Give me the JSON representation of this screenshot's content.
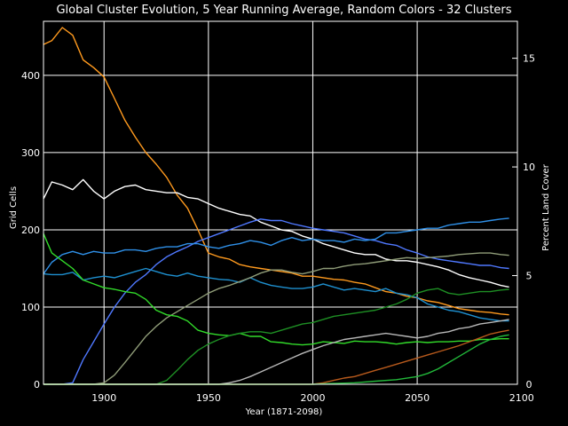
{
  "chart_data": {
    "type": "line",
    "title": "Global Cluster Evolution, 5 Year Running Average, Random Colors - 32 Clusters",
    "xlabel": "Year (1871-2098)",
    "ylabel": "Grid Cells",
    "y2label": "Percent Land Cover",
    "xlim": [
      1871,
      2098
    ],
    "ylim": [
      0,
      470
    ],
    "y2lim": [
      0,
      16.7
    ],
    "xticks": [
      1900,
      1950,
      2000,
      2050,
      2100
    ],
    "yticks": [
      0,
      100,
      200,
      300,
      400
    ],
    "y2ticks": [
      0,
      5,
      10,
      15
    ],
    "grid": true,
    "legend": "none",
    "colors": {
      "background": "#000000",
      "grid": "#ffffff",
      "orange": "#ff9a1e",
      "white": "#ffffff",
      "blue": "#4f78ff",
      "cyan_a": "#2f90e8",
      "cyan_b": "#1e90d0",
      "olive": "#8f9c78",
      "green_bright": "#32dc2a",
      "green_dark": "#1e8f24",
      "gray": "#b8b8b8",
      "dark_orange": "#b85a1c",
      "mid_green": "#22b83a"
    },
    "series": [
      {
        "color": "orange",
        "x": [
          1871,
          1875,
          1880,
          1885,
          1890,
          1895,
          1900,
          1905,
          1910,
          1915,
          1920,
          1925,
          1930,
          1935,
          1940,
          1945,
          1950,
          1955,
          1960,
          1965,
          1970,
          1975,
          1980,
          1985,
          1990,
          1995,
          2000,
          2005,
          2010,
          2015,
          2020,
          2025,
          2030,
          2035,
          2040,
          2045,
          2050,
          2055,
          2060,
          2065,
          2070,
          2075,
          2080,
          2085,
          2090,
          2094
        ],
        "y": [
          440,
          445,
          462,
          452,
          420,
          410,
          398,
          370,
          342,
          320,
          300,
          285,
          268,
          245,
          228,
          200,
          170,
          165,
          162,
          155,
          152,
          150,
          148,
          146,
          144,
          140,
          140,
          138,
          136,
          135,
          132,
          130,
          125,
          120,
          118,
          114,
          112,
          108,
          106,
          102,
          98,
          96,
          94,
          93,
          91,
          90
        ]
      },
      {
        "color": "white",
        "x": [
          1871,
          1875,
          1880,
          1885,
          1890,
          1895,
          1900,
          1905,
          1910,
          1915,
          1920,
          1925,
          1930,
          1935,
          1940,
          1945,
          1950,
          1955,
          1960,
          1965,
          1970,
          1975,
          1980,
          1985,
          1990,
          1995,
          2000,
          2005,
          2010,
          2015,
          2020,
          2025,
          2030,
          2035,
          2040,
          2045,
          2050,
          2055,
          2060,
          2065,
          2070,
          2075,
          2080,
          2085,
          2090,
          2094
        ],
        "y": [
          240,
          262,
          258,
          252,
          265,
          250,
          240,
          250,
          256,
          258,
          252,
          250,
          248,
          248,
          242,
          240,
          234,
          228,
          224,
          220,
          218,
          210,
          205,
          200,
          198,
          192,
          188,
          182,
          178,
          174,
          170,
          168,
          168,
          162,
          160,
          160,
          158,
          155,
          152,
          148,
          142,
          138,
          135,
          132,
          128,
          126
        ]
      },
      {
        "color": "blue",
        "x": [
          1871,
          1875,
          1880,
          1885,
          1890,
          1895,
          1900,
          1905,
          1910,
          1915,
          1920,
          1925,
          1930,
          1935,
          1940,
          1945,
          1950,
          1955,
          1960,
          1965,
          1970,
          1975,
          1980,
          1985,
          1990,
          1995,
          2000,
          2005,
          2010,
          2015,
          2020,
          2025,
          2030,
          2035,
          2040,
          2045,
          2050,
          2055,
          2060,
          2065,
          2070,
          2075,
          2080,
          2085,
          2090,
          2094
        ],
        "y": [
          0,
          0,
          0,
          2,
          32,
          55,
          78,
          100,
          118,
          132,
          142,
          155,
          165,
          172,
          178,
          185,
          190,
          195,
          200,
          205,
          210,
          214,
          212,
          212,
          208,
          205,
          202,
          200,
          198,
          196,
          192,
          188,
          186,
          182,
          180,
          174,
          170,
          165,
          162,
          160,
          158,
          156,
          154,
          154,
          151,
          150
        ]
      },
      {
        "color": "cyan_a",
        "x": [
          1871,
          1875,
          1880,
          1885,
          1890,
          1895,
          1900,
          1905,
          1910,
          1915,
          1920,
          1925,
          1930,
          1935,
          1940,
          1945,
          1950,
          1955,
          1960,
          1965,
          1970,
          1975,
          1980,
          1985,
          1990,
          1995,
          2000,
          2005,
          2010,
          2015,
          2020,
          2025,
          2030,
          2035,
          2040,
          2045,
          2050,
          2055,
          2060,
          2065,
          2070,
          2075,
          2080,
          2085,
          2090,
          2094
        ],
        "y": [
          143,
          158,
          168,
          172,
          168,
          172,
          170,
          170,
          174,
          174,
          172,
          176,
          178,
          178,
          182,
          182,
          178,
          176,
          180,
          182,
          186,
          184,
          180,
          186,
          190,
          186,
          188,
          186,
          186,
          184,
          188,
          186,
          188,
          196,
          196,
          198,
          200,
          202,
          202,
          206,
          208,
          210,
          210,
          212,
          214,
          215
        ]
      },
      {
        "color": "cyan_b",
        "x": [
          1871,
          1875,
          1880,
          1885,
          1890,
          1895,
          1900,
          1905,
          1910,
          1915,
          1920,
          1925,
          1930,
          1935,
          1940,
          1945,
          1950,
          1955,
          1960,
          1965,
          1970,
          1975,
          1980,
          1985,
          1990,
          1995,
          2000,
          2005,
          2010,
          2015,
          2020,
          2025,
          2030,
          2035,
          2040,
          2045,
          2050,
          2055,
          2060,
          2065,
          2070,
          2075,
          2080,
          2085,
          2090,
          2094
        ],
        "y": [
          143,
          142,
          142,
          145,
          135,
          138,
          140,
          138,
          142,
          146,
          150,
          146,
          142,
          140,
          144,
          140,
          138,
          136,
          135,
          132,
          138,
          132,
          128,
          126,
          124,
          124,
          126,
          130,
          126,
          122,
          124,
          122,
          120,
          124,
          118,
          116,
          112,
          104,
          100,
          96,
          94,
          90,
          86,
          84,
          82,
          82
        ]
      },
      {
        "color": "olive",
        "x": [
          1871,
          1880,
          1890,
          1895,
          1900,
          1905,
          1910,
          1915,
          1920,
          1925,
          1930,
          1935,
          1940,
          1945,
          1950,
          1955,
          1960,
          1965,
          1970,
          1975,
          1980,
          1985,
          1990,
          1995,
          2000,
          2005,
          2010,
          2015,
          2020,
          2025,
          2030,
          2035,
          2040,
          2045,
          2050,
          2055,
          2060,
          2065,
          2070,
          2075,
          2080,
          2085,
          2090,
          2094
        ],
        "y": [
          0,
          0,
          0,
          0,
          2,
          12,
          28,
          45,
          62,
          75,
          86,
          94,
          102,
          110,
          118,
          124,
          128,
          133,
          138,
          144,
          148,
          148,
          145,
          143,
          146,
          150,
          150,
          153,
          155,
          156,
          158,
          160,
          162,
          164,
          163,
          164,
          165,
          166,
          168,
          169,
          170,
          170,
          168,
          167
        ]
      },
      {
        "color": "green_bright",
        "x": [
          1871,
          1875,
          1880,
          1885,
          1890,
          1895,
          1900,
          1905,
          1910,
          1915,
          1920,
          1925,
          1930,
          1935,
          1940,
          1945,
          1950,
          1955,
          1960,
          1965,
          1970,
          1975,
          1980,
          1985,
          1990,
          1995,
          2000,
          2005,
          2010,
          2015,
          2020,
          2025,
          2030,
          2035,
          2040,
          2045,
          2050,
          2055,
          2060,
          2065,
          2070,
          2075,
          2080,
          2085,
          2090,
          2094
        ],
        "y": [
          195,
          170,
          160,
          150,
          135,
          130,
          125,
          123,
          120,
          118,
          110,
          96,
          90,
          88,
          82,
          70,
          66,
          64,
          63,
          66,
          62,
          62,
          55,
          54,
          52,
          51,
          52,
          55,
          54,
          53,
          56,
          55,
          55,
          54,
          52,
          54,
          55,
          54,
          55,
          55,
          56,
          56,
          58,
          58,
          59,
          59
        ]
      },
      {
        "color": "green_dark",
        "x": [
          1871,
          1900,
          1920,
          1925,
          1930,
          1935,
          1940,
          1945,
          1950,
          1955,
          1960,
          1965,
          1970,
          1975,
          1980,
          1985,
          1990,
          1995,
          2000,
          2005,
          2010,
          2015,
          2020,
          2025,
          2030,
          2035,
          2040,
          2045,
          2050,
          2055,
          2060,
          2065,
          2070,
          2075,
          2080,
          2085,
          2090,
          2094
        ],
        "y": [
          0,
          0,
          0,
          0,
          5,
          18,
          32,
          44,
          52,
          58,
          63,
          66,
          68,
          68,
          66,
          70,
          74,
          78,
          80,
          84,
          88,
          90,
          92,
          94,
          96,
          100,
          104,
          110,
          118,
          122,
          124,
          118,
          116,
          118,
          120,
          120,
          122,
          123
        ]
      },
      {
        "color": "gray",
        "x": [
          1871,
          1950,
          1955,
          1960,
          1965,
          1970,
          1975,
          1980,
          1985,
          1990,
          1995,
          2000,
          2005,
          2010,
          2015,
          2020,
          2025,
          2030,
          2035,
          2040,
          2045,
          2050,
          2055,
          2060,
          2065,
          2070,
          2075,
          2080,
          2085,
          2090,
          2094
        ],
        "y": [
          0,
          0,
          0,
          2,
          5,
          10,
          16,
          22,
          28,
          34,
          40,
          45,
          50,
          54,
          58,
          60,
          62,
          64,
          66,
          64,
          62,
          60,
          62,
          66,
          68,
          72,
          74,
          78,
          80,
          82,
          84
        ]
      },
      {
        "color": "dark_orange",
        "x": [
          1871,
          1990,
          2000,
          2005,
          2010,
          2015,
          2020,
          2025,
          2030,
          2035,
          2040,
          2045,
          2050,
          2055,
          2060,
          2065,
          2070,
          2075,
          2080,
          2085,
          2090,
          2094
        ],
        "y": [
          0,
          0,
          0,
          2,
          5,
          8,
          10,
          14,
          18,
          22,
          26,
          30,
          34,
          38,
          42,
          46,
          50,
          55,
          60,
          65,
          68,
          70
        ]
      },
      {
        "color": "mid_green",
        "x": [
          1871,
          2000,
          2010,
          2020,
          2030,
          2040,
          2050,
          2055,
          2060,
          2065,
          2070,
          2075,
          2080,
          2085,
          2090,
          2094
        ],
        "y": [
          0,
          0,
          1,
          2,
          4,
          6,
          10,
          14,
          20,
          28,
          36,
          44,
          52,
          58,
          62,
          64
        ]
      }
    ]
  }
}
